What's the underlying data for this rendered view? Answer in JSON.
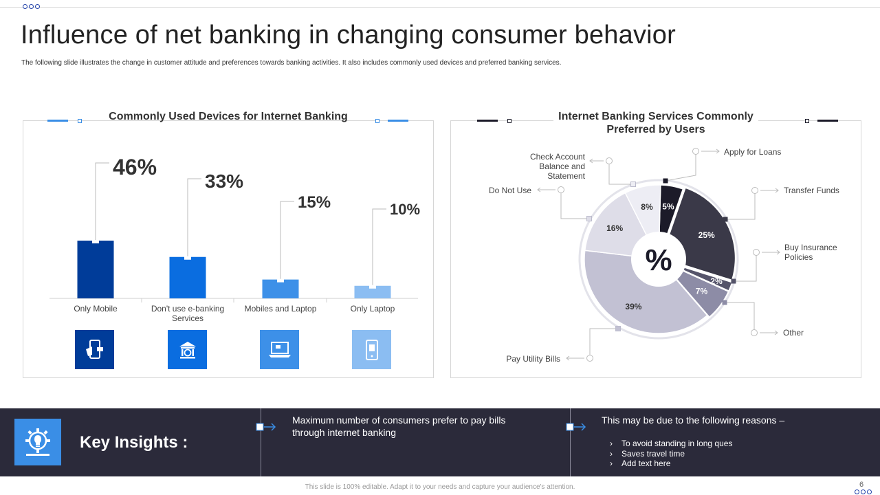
{
  "slide": {
    "title": "Influence of net banking in changing consumer behavior",
    "subtitle": "The following slide illustrates the change in customer attitude and preferences towards banking activities. It also includes commonly used devices and preferred banking services.",
    "footer": "This slide is 100% editable. Adapt it to your needs and capture your audience's attention.",
    "page_number": "6"
  },
  "colors": {
    "accent_blue": "#3a8ee6",
    "dark_navy": "#2b2a3a"
  },
  "icons": {
    "left_tiles": [
      "mobile-cash-icon",
      "bank-building-icon",
      "laptop-icon",
      "phone-icon"
    ],
    "insights": "gear-lightbulb-icon"
  },
  "chart_data": [
    {
      "type": "bar",
      "title": "Commonly Used Devices for Internet Banking",
      "categories": [
        "Only Mobile",
        "Don't use e-banking Services",
        "Mobiles and Laptop",
        "Only Laptop"
      ],
      "values": [
        46,
        33,
        15,
        10
      ],
      "value_labels": [
        "46%",
        "33%",
        "15%",
        "10%"
      ],
      "colors": [
        "#003c99",
        "#0a6de0",
        "#3d90e8",
        "#8bbdf2"
      ],
      "xlabel": "",
      "ylabel": "",
      "grid": false
    },
    {
      "type": "pie",
      "title": "Internet Banking Services Commonly Preferred by Users",
      "center_label": "%",
      "labels": [
        "Apply for Loans",
        "Transfer Funds",
        "Buy Insurance Policies",
        "Other",
        "Pay Utility Bills",
        "Do Not Use",
        "Check Account Balance and Statement"
      ],
      "values": [
        5,
        25,
        2,
        7,
        39,
        16,
        8
      ],
      "value_labels": [
        "5%",
        "25%",
        "2%",
        "7%",
        "39%",
        "16%",
        "8%"
      ],
      "colors": [
        "#1c1b29",
        "#3a3948",
        "#55546a",
        "#8d8ca6",
        "#c2c1d3",
        "#dedde8",
        "#ededf4"
      ],
      "legend": "callouts"
    }
  ],
  "insights": {
    "title": "Key Insights :",
    "point1": "Maximum number of consumers prefer to pay bills through internet banking",
    "point2": "This may be due to the following reasons –",
    "reasons": [
      "To avoid standing in long ques",
      "Saves travel time",
      "Add text here"
    ]
  }
}
